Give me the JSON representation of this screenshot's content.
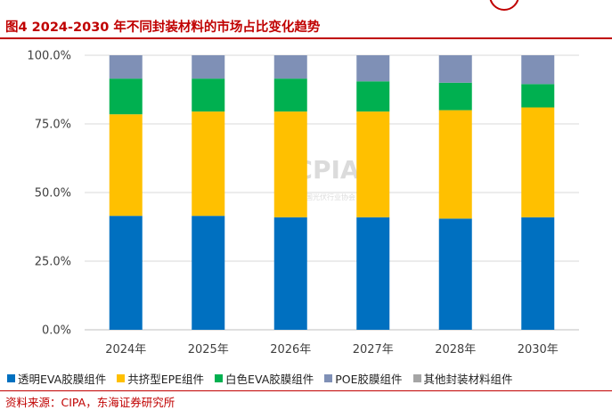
{
  "figure_title": "图4 2024-2030 年不同封装材料的市场占比变化趋势",
  "source": "资料来源：CIPA，东海证券研究所",
  "watermark": {
    "text": "CPIA",
    "subtext": "中国光伏行业协会"
  },
  "chart_data": {
    "type": "bar",
    "stacked": true,
    "title": "",
    "xlabel": "",
    "ylabel": "",
    "categories": [
      "2024年",
      "2025年",
      "2026年",
      "2027年",
      "2028年",
      "2030年"
    ],
    "ylim": [
      0,
      100
    ],
    "yticks": [
      "0.0%",
      "25.0%",
      "50.0%",
      "75.0%",
      "100.0%"
    ],
    "grid": true,
    "legend_position": "bottom",
    "series": [
      {
        "name": "透明EVA胶膜组件",
        "color": "#0070c0",
        "values": [
          41.5,
          41.5,
          41.0,
          41.0,
          40.5,
          41.0
        ]
      },
      {
        "name": "共挤型EPE组件",
        "color": "#ffc000",
        "values": [
          37.0,
          38.0,
          38.5,
          38.5,
          39.5,
          40.0
        ]
      },
      {
        "name": "白色EVA胶膜组件",
        "color": "#00b050",
        "values": [
          13.0,
          12.0,
          12.0,
          11.0,
          10.0,
          8.5
        ]
      },
      {
        "name": "POE胶膜组件",
        "color": "#7f90b6",
        "values": [
          8.5,
          8.5,
          8.5,
          9.5,
          10.0,
          10.5
        ]
      },
      {
        "name": "其他封装材料组件",
        "color": "#a5a5a5",
        "values": [
          0,
          0,
          0,
          0,
          0,
          0
        ]
      }
    ]
  }
}
